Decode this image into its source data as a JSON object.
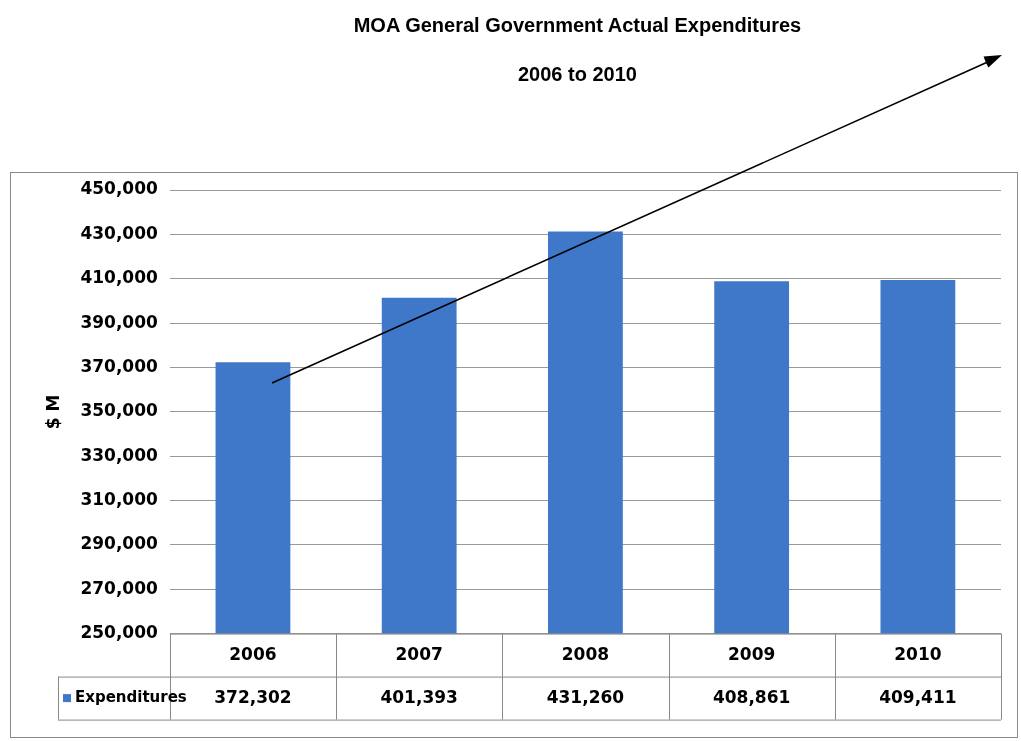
{
  "chart_data": {
    "type": "bar",
    "title": "MOA General Government Actual Expenditures",
    "subtitle": "2006 to 2010",
    "ylabel": "$ M",
    "categories": [
      "2006",
      "2007",
      "2008",
      "2009",
      "2010"
    ],
    "series": [
      {
        "name": "Expenditures",
        "color": "#3f78c9",
        "values": [
          372302,
          401393,
          431260,
          408861,
          409411
        ],
        "value_labels": [
          "372,302",
          "401,393",
          "431,260",
          "408,861",
          "409,411"
        ]
      }
    ],
    "ylim": [
      250000,
      450000
    ],
    "yticks": [
      {
        "value": 250000,
        "label": "250,000"
      },
      {
        "value": 270000,
        "label": "270,000"
      },
      {
        "value": 290000,
        "label": "290,000"
      },
      {
        "value": 310000,
        "label": "310,000"
      },
      {
        "value": 330000,
        "label": "330,000"
      },
      {
        "value": 350000,
        "label": "350,000"
      },
      {
        "value": 370000,
        "label": "370,000"
      },
      {
        "value": 390000,
        "label": "390,000"
      },
      {
        "value": 410000,
        "label": "410,000"
      },
      {
        "value": 430000,
        "label": "430,000"
      },
      {
        "value": 450000,
        "label": "450,000"
      }
    ],
    "grid": "y",
    "legend": "bottom left"
  }
}
